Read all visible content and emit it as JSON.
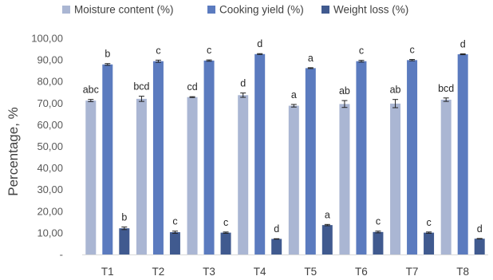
{
  "chart_data": {
    "type": "bar",
    "title": "",
    "xlabel": "",
    "ylabel": "Percentage, %",
    "ylim": [
      0,
      100
    ],
    "yticks": [
      0,
      10,
      20,
      30,
      40,
      50,
      60,
      70,
      80,
      90,
      100
    ],
    "ytick_labels": [
      "-",
      "10,00",
      "20,00",
      "30,00",
      "40,00",
      "50,00",
      "60,00",
      "70,00",
      "80,00",
      "90,00",
      "100,00"
    ],
    "grid": false,
    "legend_position": "top",
    "categories": [
      "T1",
      "T2",
      "T3",
      "T4",
      "T5",
      "T6",
      "T7",
      "T8"
    ],
    "series": [
      {
        "name": "Moisture content (%)",
        "color": "#aab6d3",
        "values": [
          71.2,
          72.0,
          72.8,
          73.7,
          68.8,
          69.6,
          69.8,
          71.6
        ],
        "errors": [
          0.5,
          1.2,
          0.2,
          1.0,
          0.6,
          1.6,
          1.9,
          0.8
        ],
        "letters": [
          "abc",
          "bcd",
          "cd",
          "d",
          "a",
          "ab",
          "ab",
          "bcd"
        ]
      },
      {
        "name": "Cooking yield (%)",
        "color": "#5b7bbf",
        "values": [
          87.9,
          89.4,
          89.7,
          92.7,
          86.2,
          89.4,
          89.9,
          92.6
        ],
        "errors": [
          0.4,
          0.5,
          0.3,
          0.2,
          0.2,
          0.4,
          0.3,
          0.2
        ],
        "letters": [
          "b",
          "c",
          "c",
          "d",
          "a",
          "c",
          "c",
          "d"
        ]
      },
      {
        "name": "Weight loss (%)",
        "color": "#405a8f",
        "values": [
          12.1,
          10.3,
          10.1,
          7.2,
          13.6,
          10.4,
          10.1,
          7.3
        ],
        "errors": [
          0.6,
          0.5,
          0.3,
          0.1,
          0.3,
          0.4,
          0.3,
          0.1
        ],
        "letters": [
          "b",
          "c",
          "c",
          "d",
          "a",
          "c",
          "c",
          "d"
        ]
      }
    ]
  }
}
